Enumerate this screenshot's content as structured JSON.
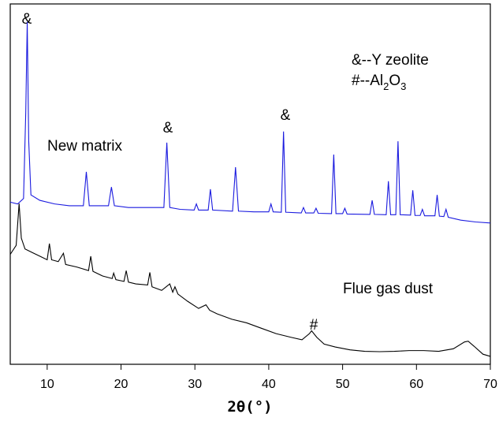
{
  "chart_data": {
    "type": "line",
    "x_label": "2θ(°)",
    "xlim": [
      5,
      70
    ],
    "xticks": [
      10,
      20,
      30,
      40,
      50,
      60,
      70
    ],
    "ylim": [
      0,
      100
    ],
    "peak_marks": {
      "zeolite": "&",
      "alumina": "#"
    },
    "key": {
      "zeolite": "&--Y zeolite",
      "alumina": [
        "#--Al",
        "2",
        "O",
        "3"
      ]
    },
    "series": [
      {
        "name": "New matrix",
        "color": "#1a1adf",
        "x": [
          5,
          6,
          6.8,
          7.1,
          7.3,
          7.5,
          7.8,
          9,
          11,
          13,
          14.9,
          15.3,
          15.7,
          18.3,
          18.7,
          19.1,
          21,
          23,
          25.8,
          26.2,
          26.6,
          28,
          29.9,
          30.2,
          30.5,
          31.8,
          32.1,
          32.4,
          35.1,
          35.5,
          35.9,
          38,
          40,
          40.3,
          40.6,
          41.7,
          42,
          42.3,
          44.4,
          44.7,
          45,
          46.1,
          46.4,
          46.7,
          48.5,
          48.8,
          49.1,
          50,
          50.3,
          50.6,
          53.7,
          54,
          54.3,
          55.9,
          56.2,
          56.5,
          57.2,
          57.5,
          57.8,
          59.2,
          59.5,
          59.8,
          60.5,
          60.8,
          61.1,
          62.5,
          62.8,
          63.1,
          63.7,
          64,
          64.3,
          66,
          68,
          70
        ],
        "values": [
          45,
          44.5,
          46,
          70,
          95,
          62,
          47,
          45.5,
          44.5,
          44,
          44,
          53.4,
          44,
          44,
          49.2,
          44,
          43.5,
          43.5,
          43.5,
          61.5,
          43.5,
          43,
          42.8,
          44.5,
          42.8,
          42.8,
          48.6,
          42.8,
          42.5,
          54.7,
          42.5,
          42.3,
          42.3,
          44.5,
          42.3,
          42.2,
          64.6,
          42.2,
          42,
          43.5,
          42,
          42,
          43.3,
          41.9,
          41.8,
          58.2,
          41.8,
          41.8,
          43.3,
          41.7,
          41.6,
          45.5,
          41.6,
          41.5,
          50.8,
          41.5,
          41.5,
          61.9,
          41.5,
          41.4,
          48.3,
          41.3,
          41.3,
          43,
          41.2,
          41.2,
          47,
          41.1,
          41,
          43,
          40.8,
          40,
          39.5,
          39.2
        ]
      },
      {
        "name": "Flue gas dust",
        "color": "#000000",
        "x": [
          5,
          5.8,
          6.2,
          6.5,
          7,
          8,
          9,
          10,
          10.3,
          10.6,
          11.5,
          12.2,
          12.5,
          14,
          15.6,
          15.9,
          16.2,
          17.5,
          18.8,
          19,
          19.3,
          20.4,
          20.7,
          21,
          22,
          23.6,
          23.9,
          24.2,
          25.5,
          26.6,
          27,
          27.3,
          27.7,
          29,
          30.5,
          31.5,
          32,
          33,
          35,
          37,
          39,
          41,
          43,
          44.5,
          45.5,
          45.8,
          46.5,
          47.5,
          49,
          51,
          53,
          55,
          57,
          59,
          61,
          63,
          65,
          66.5,
          67,
          67.8,
          69,
          70
        ],
        "values": [
          30.5,
          33,
          44.6,
          35,
          32,
          31,
          30,
          29,
          33.5,
          29,
          28.5,
          30.8,
          27.7,
          27,
          26,
          30,
          25.8,
          24.5,
          23.8,
          25.3,
          23.5,
          23,
          26,
          22.8,
          22.3,
          22,
          25.5,
          21.5,
          20.5,
          22.3,
          20,
          21.5,
          19.5,
          17.5,
          15.5,
          16.5,
          15,
          14,
          12.5,
          11.5,
          10,
          8.5,
          7.5,
          6.8,
          8.5,
          9.3,
          7.5,
          5.6,
          4.8,
          4,
          3.6,
          3.5,
          3.6,
          3.8,
          3.8,
          3.6,
          4.3,
          6.2,
          6.4,
          5,
          2.8,
          2.2
        ]
      }
    ]
  }
}
